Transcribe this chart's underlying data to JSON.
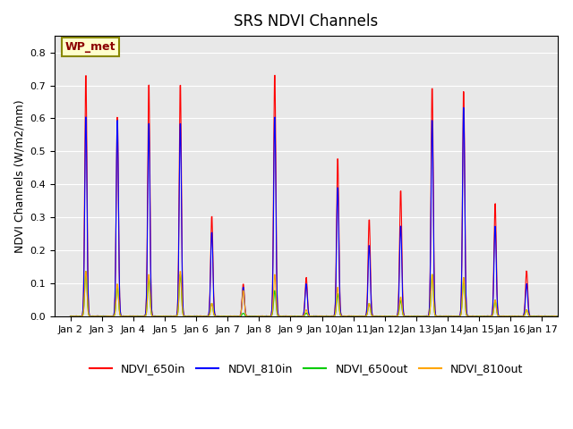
{
  "title": "SRS NDVI Channels",
  "ylabel": "NDVI Channels (W/m2/mm)",
  "annotation": "WP_met",
  "annotation_color": "#8B0000",
  "annotation_bg": "#FFFFCC",
  "background_color": "#E8E8E8",
  "ylim": [
    0.0,
    0.85
  ],
  "yticks": [
    0.0,
    0.1,
    0.2,
    0.3,
    0.4,
    0.5,
    0.6,
    0.7,
    0.8
  ],
  "colors": {
    "NDVI_650in": "#FF0000",
    "NDVI_810in": "#0000FF",
    "NDVI_650out": "#00CC00",
    "NDVI_810out": "#FFA500"
  },
  "xticklabels": [
    "Jan 2",
    "Jan 3",
    "Jan 4",
    "Jan 5",
    "Jan 6",
    "Jan 7",
    "Jan 8",
    "Jan 9",
    "Jan 10",
    "Jan 11",
    "Jan 12",
    "Jan 13",
    "Jan 14",
    "Jan 15",
    "Jan 16",
    "Jan 17"
  ],
  "peaks_650in": [
    0.75,
    0.62,
    0.72,
    0.72,
    0.31,
    0.1,
    0.75,
    0.12,
    0.49,
    0.3,
    0.39,
    0.71,
    0.7,
    0.35,
    0.14,
    0.0
  ],
  "peaks_810in": [
    0.62,
    0.61,
    0.6,
    0.6,
    0.26,
    0.09,
    0.62,
    0.1,
    0.4,
    0.22,
    0.28,
    0.61,
    0.65,
    0.28,
    0.1,
    0.0
  ],
  "peaks_650out": [
    0.14,
    0.1,
    0.12,
    0.13,
    0.04,
    0.01,
    0.08,
    0.01,
    0.07,
    0.04,
    0.05,
    0.13,
    0.12,
    0.05,
    0.02,
    0.0
  ],
  "peaks_810out": [
    0.14,
    0.1,
    0.13,
    0.14,
    0.04,
    0.08,
    0.13,
    0.02,
    0.09,
    0.04,
    0.06,
    0.13,
    0.12,
    0.05,
    0.02,
    0.0
  ]
}
